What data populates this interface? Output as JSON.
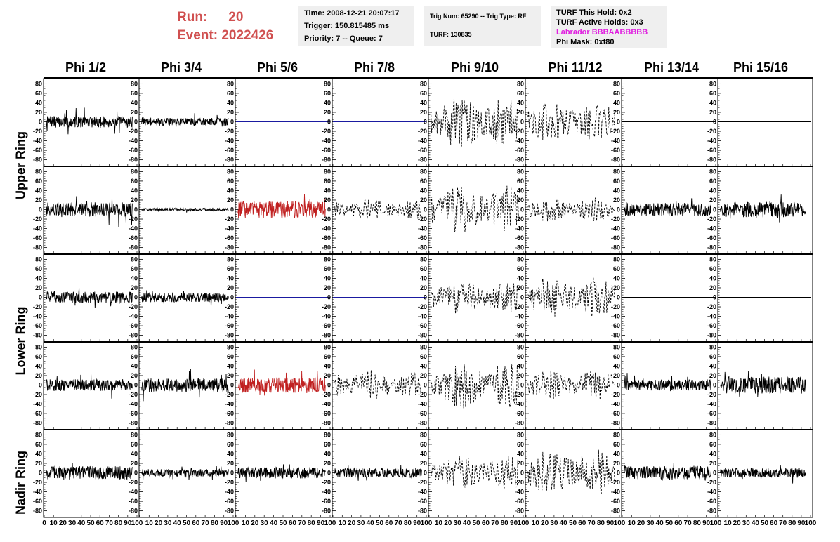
{
  "header": {
    "run_label": "Run:",
    "run_value": "20",
    "event_label": "Event:",
    "event_value": "2022426",
    "time": "Time: 2008-12-21 20:07:17",
    "trigger": "Trigger: 150.815485 ms",
    "priority": "Priority: 7 -- Queue: 7",
    "trig_num": "Trig Num: 65290 -- Trig Type: RF",
    "turf": "TURF: 130835",
    "turf_this_hold": "TURF This Hold: 0x2",
    "turf_active_holds": "TURF Active Holds: 0x3",
    "labrador": "Labrador BBBAABBBBB",
    "phi_mask": "Phi Mask: 0xf80"
  },
  "columns": [
    "Phi 1/2",
    "Phi 3/4",
    "Phi 5/6",
    "Phi 7/8",
    "Phi 9/10",
    "Phi 11/12",
    "Phi 13/14",
    "Phi 15/16"
  ],
  "row_groups": [
    "Upper Ring",
    "Lower Ring",
    "Nadir Ring"
  ],
  "chart_data": {
    "type": "line",
    "xlim": [
      0,
      100
    ],
    "ylim": [
      -85,
      85
    ],
    "y_ticks": [
      "80",
      "60",
      "40",
      "20",
      "0",
      "-20",
      "-40",
      "-60",
      "-80"
    ],
    "x_tick_labels_first": [
      "0",
      "10",
      "20",
      "30",
      "40",
      "50",
      "60",
      "70",
      "80",
      "90",
      "100"
    ],
    "x_tick_labels": [
      "10",
      "20",
      "30",
      "40",
      "50",
      "60",
      "70",
      "80",
      "90",
      "100"
    ],
    "colors": {
      "black": "#000000",
      "red": "#c02020",
      "blue": "#1a1aa0"
    },
    "panels": [
      [
        {
          "s": "noise",
          "a": 12
        },
        {
          "s": "noise",
          "a": 8
        },
        {
          "s": "flat",
          "c": "blue"
        },
        {
          "s": "flat",
          "c": "blue"
        },
        {
          "s": "dash",
          "a": 40
        },
        {
          "s": "dash",
          "a": 30
        },
        {
          "s": "flat",
          "c": "black"
        },
        {
          "s": "flat",
          "c": "black"
        }
      ],
      [
        {
          "s": "noise",
          "a": 15
        },
        {
          "s": "noise",
          "a": 3
        },
        {
          "s": "noise",
          "a": 18,
          "c": "red"
        },
        {
          "s": "dash",
          "a": 15
        },
        {
          "s": "dash",
          "a": 35
        },
        {
          "s": "dash",
          "a": 18
        },
        {
          "s": "noise",
          "a": 14
        },
        {
          "s": "noise",
          "a": 16
        }
      ],
      [
        {
          "s": "noise",
          "a": 12
        },
        {
          "s": "noise",
          "a": 10
        },
        {
          "s": "flat",
          "c": "blue"
        },
        {
          "s": "flat",
          "c": "blue"
        },
        {
          "s": "dash",
          "a": 25
        },
        {
          "s": "dash",
          "a": 30
        },
        {
          "s": "flat",
          "c": "black"
        },
        {
          "s": "flat",
          "c": "black"
        }
      ],
      [
        {
          "s": "noise",
          "a": 12
        },
        {
          "s": "noise",
          "a": 14
        },
        {
          "s": "noise",
          "a": 16,
          "c": "red"
        },
        {
          "s": "dash",
          "a": 22
        },
        {
          "s": "dash",
          "a": 35
        },
        {
          "s": "dash",
          "a": 22
        },
        {
          "s": "noise",
          "a": 12
        },
        {
          "s": "noise",
          "a": 18
        }
      ],
      [
        {
          "s": "noise",
          "a": 14
        },
        {
          "s": "noise",
          "a": 8
        },
        {
          "s": "noise",
          "a": 12
        },
        {
          "s": "noise",
          "a": 10
        },
        {
          "s": "dash",
          "a": 25
        },
        {
          "s": "dash",
          "a": 35
        },
        {
          "s": "noise",
          "a": 14
        },
        {
          "s": "noise",
          "a": 10
        }
      ]
    ]
  }
}
